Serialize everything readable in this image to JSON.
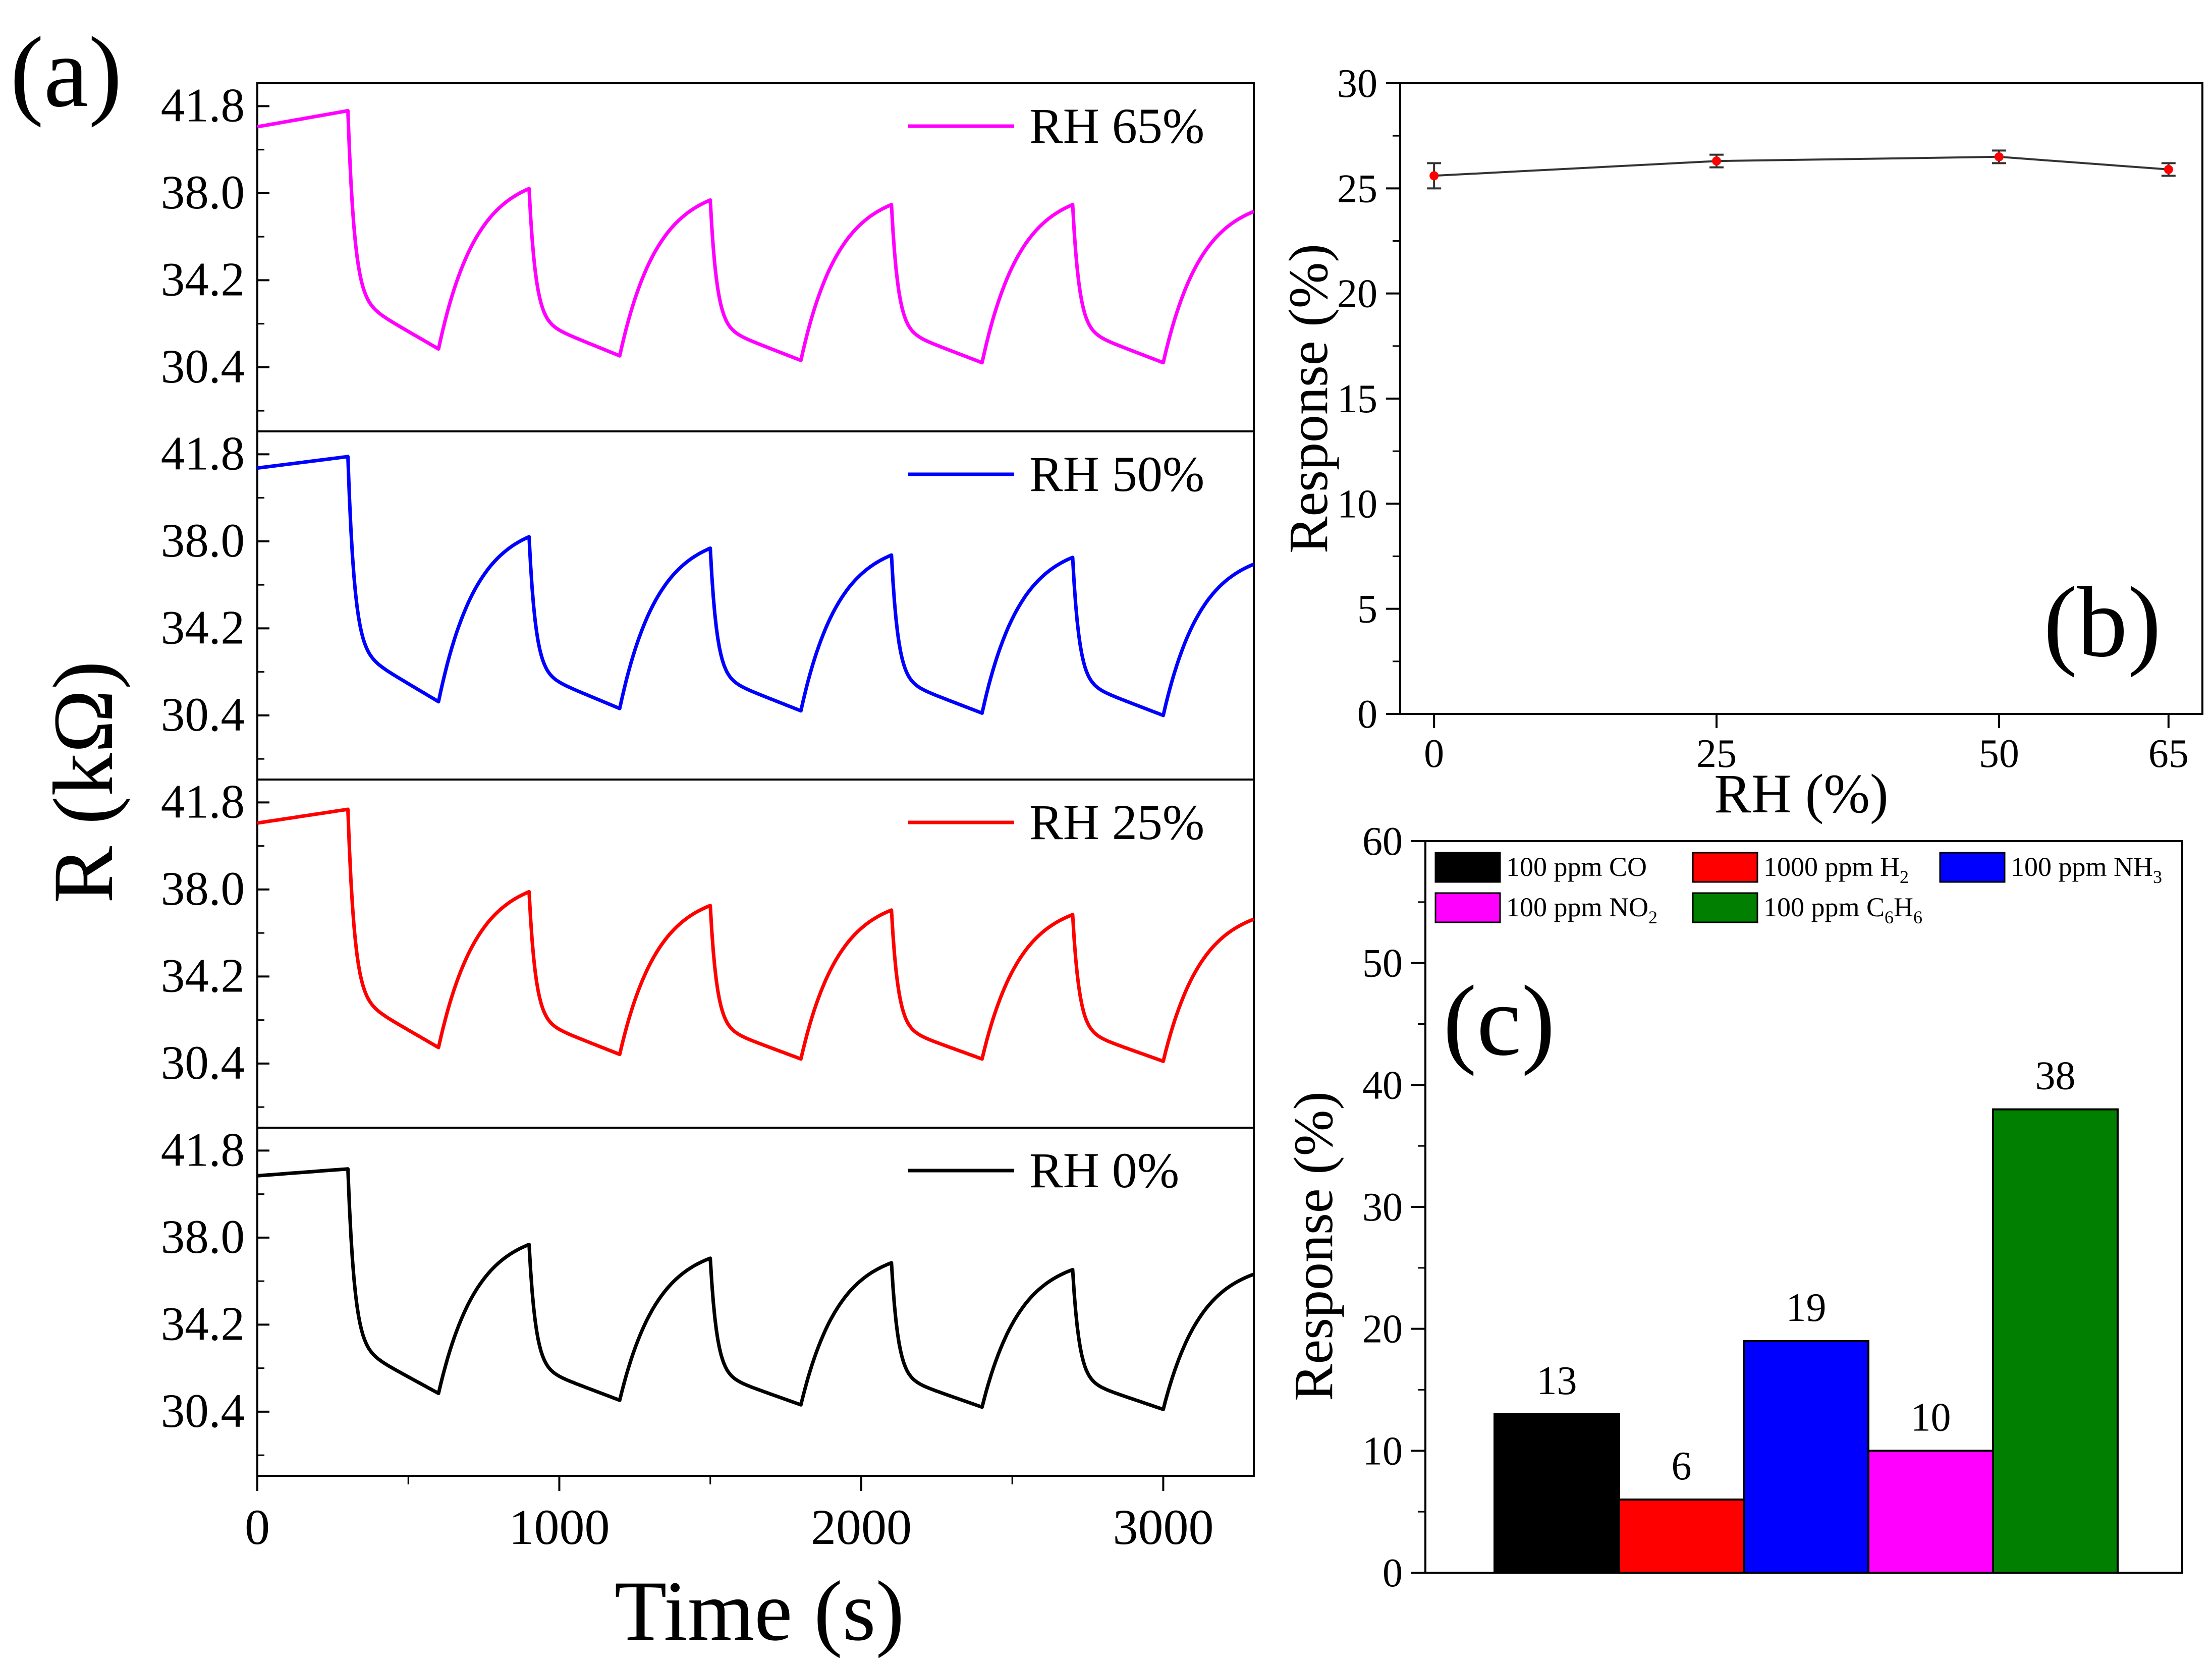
{
  "chart_data": [
    {
      "panel": "(a)",
      "type": "line",
      "xlabel": "Time (s)",
      "ylabel": "R (kΩ)",
      "xlim": [
        0,
        3300
      ],
      "xticks": [
        "0",
        "1000",
        "2000",
        "3000"
      ],
      "ylim": [
        27.6,
        42.8
      ],
      "yticks": [
        "41.8",
        "38.0",
        "34.2",
        "30.4"
      ],
      "cycle": {
        "baseline_end_s": 300,
        "expose_s": 300,
        "recover_s": 300,
        "period_s": 600
      },
      "series": [
        {
          "name": "RH 65%",
          "color": "#ff00ff",
          "start": 40.9,
          "baseline_peak": 41.6,
          "peaks": [
            38.2,
            37.7,
            37.5,
            37.5
          ],
          "valleys": [
            31.2,
            30.9,
            30.7,
            30.6,
            30.6
          ],
          "end": 37.2
        },
        {
          "name": "RH 50%",
          "color": "#0000ff",
          "start": 41.2,
          "baseline_peak": 41.7,
          "peaks": [
            38.2,
            37.7,
            37.4,
            37.3
          ],
          "valleys": [
            31.0,
            30.7,
            30.6,
            30.5,
            30.4
          ],
          "end": 37.0
        },
        {
          "name": "RH 25%",
          "color": "#ff0000",
          "start": 40.9,
          "baseline_peak": 41.5,
          "peaks": [
            37.9,
            37.3,
            37.1,
            36.9
          ],
          "valleys": [
            31.1,
            30.8,
            30.6,
            30.6,
            30.5
          ],
          "end": 36.7
        },
        {
          "name": "RH 0%",
          "color": "#000000",
          "start": 40.7,
          "baseline_peak": 41.0,
          "peaks": [
            37.7,
            37.1,
            36.9,
            36.6
          ],
          "valleys": [
            31.2,
            30.9,
            30.7,
            30.6,
            30.5
          ],
          "end": 36.4
        }
      ]
    },
    {
      "panel": "(b)",
      "type": "line",
      "xlabel": "RH (%)",
      "ylabel": "Response (%)",
      "x": [
        0,
        25,
        50,
        65
      ],
      "y": [
        25.6,
        26.3,
        26.5,
        25.9
      ],
      "yerr": [
        0.6,
        0.3,
        0.3,
        0.3
      ],
      "xticks": [
        "0",
        "25",
        "50",
        "65"
      ],
      "xlim": [
        -3,
        68
      ],
      "ylim": [
        0,
        30
      ],
      "yticks": [
        "0",
        "5",
        "10",
        "15",
        "20",
        "25",
        "30"
      ],
      "line_color": "#333333",
      "marker_color": "#ff0000"
    },
    {
      "panel": "(c)",
      "type": "bar",
      "ylabel": "Response (%)",
      "ylim": [
        0,
        60
      ],
      "yticks": [
        "0",
        "10",
        "20",
        "30",
        "40",
        "50",
        "60"
      ],
      "categories": [
        "100 ppm CO",
        "1000 ppm H2",
        "100 ppm NH3",
        "100 ppm NO2",
        "100 ppm C6H6"
      ],
      "values": [
        13,
        6,
        19,
        10,
        38
      ],
      "value_labels": [
        "13",
        "6",
        "19",
        "10",
        "38"
      ],
      "colors": [
        "#000000",
        "#ff0000",
        "#0000ff",
        "#ff00ff",
        "#007f00"
      ],
      "legend": [
        {
          "base": "100 ppm CO",
          "sub": "",
          "tail": ""
        },
        {
          "base": "1000 ppm H",
          "sub": "2",
          "tail": ""
        },
        {
          "base": "100 ppm NH",
          "sub": "3",
          "tail": ""
        },
        {
          "base": "100 ppm NO",
          "sub": "2",
          "tail": ""
        },
        {
          "base": "100 ppm C",
          "sub": "6",
          "tail": "H",
          "sub2": "6"
        }
      ]
    }
  ]
}
